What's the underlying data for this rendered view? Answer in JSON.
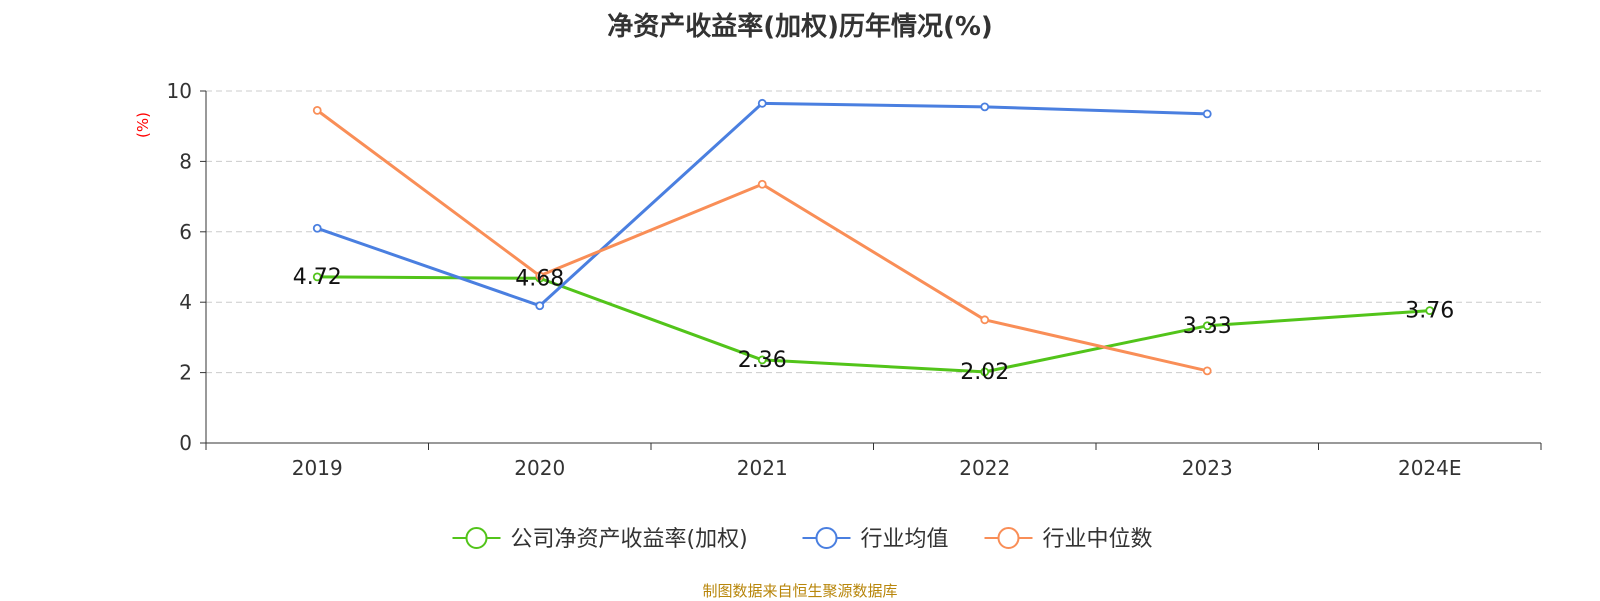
{
  "title": "净资产收益率(加权)历年情况(%)",
  "source_text": "制图数据来自恒生聚源数据库",
  "chart_data": {
    "type": "line",
    "title": "净资产收益率(加权)历年情况(%)",
    "ylabel": "(%)",
    "categories": [
      "2019",
      "2020",
      "2021",
      "2022",
      "2023",
      "2024E"
    ],
    "ylim": [
      0,
      10
    ],
    "yticks": [
      0,
      2,
      4,
      6,
      8,
      10
    ],
    "grid": true,
    "legend_position": "bottom-center",
    "series": [
      {
        "name": "公司净资产收益率(加权)",
        "color": "#52c41a",
        "values": [
          4.72,
          4.68,
          2.36,
          2.02,
          3.33,
          3.76
        ],
        "labels": [
          "4.72",
          "4.68",
          "2.36",
          "2.02",
          "3.33",
          "3.76"
        ]
      },
      {
        "name": "行业均值",
        "color": "#4a7fe0",
        "values": [
          6.1,
          3.9,
          9.65,
          9.55,
          9.35,
          null
        ]
      },
      {
        "name": "行业中位数",
        "color": "#f98e57",
        "values": [
          9.45,
          4.75,
          7.35,
          3.5,
          2.05,
          null
        ]
      }
    ]
  }
}
